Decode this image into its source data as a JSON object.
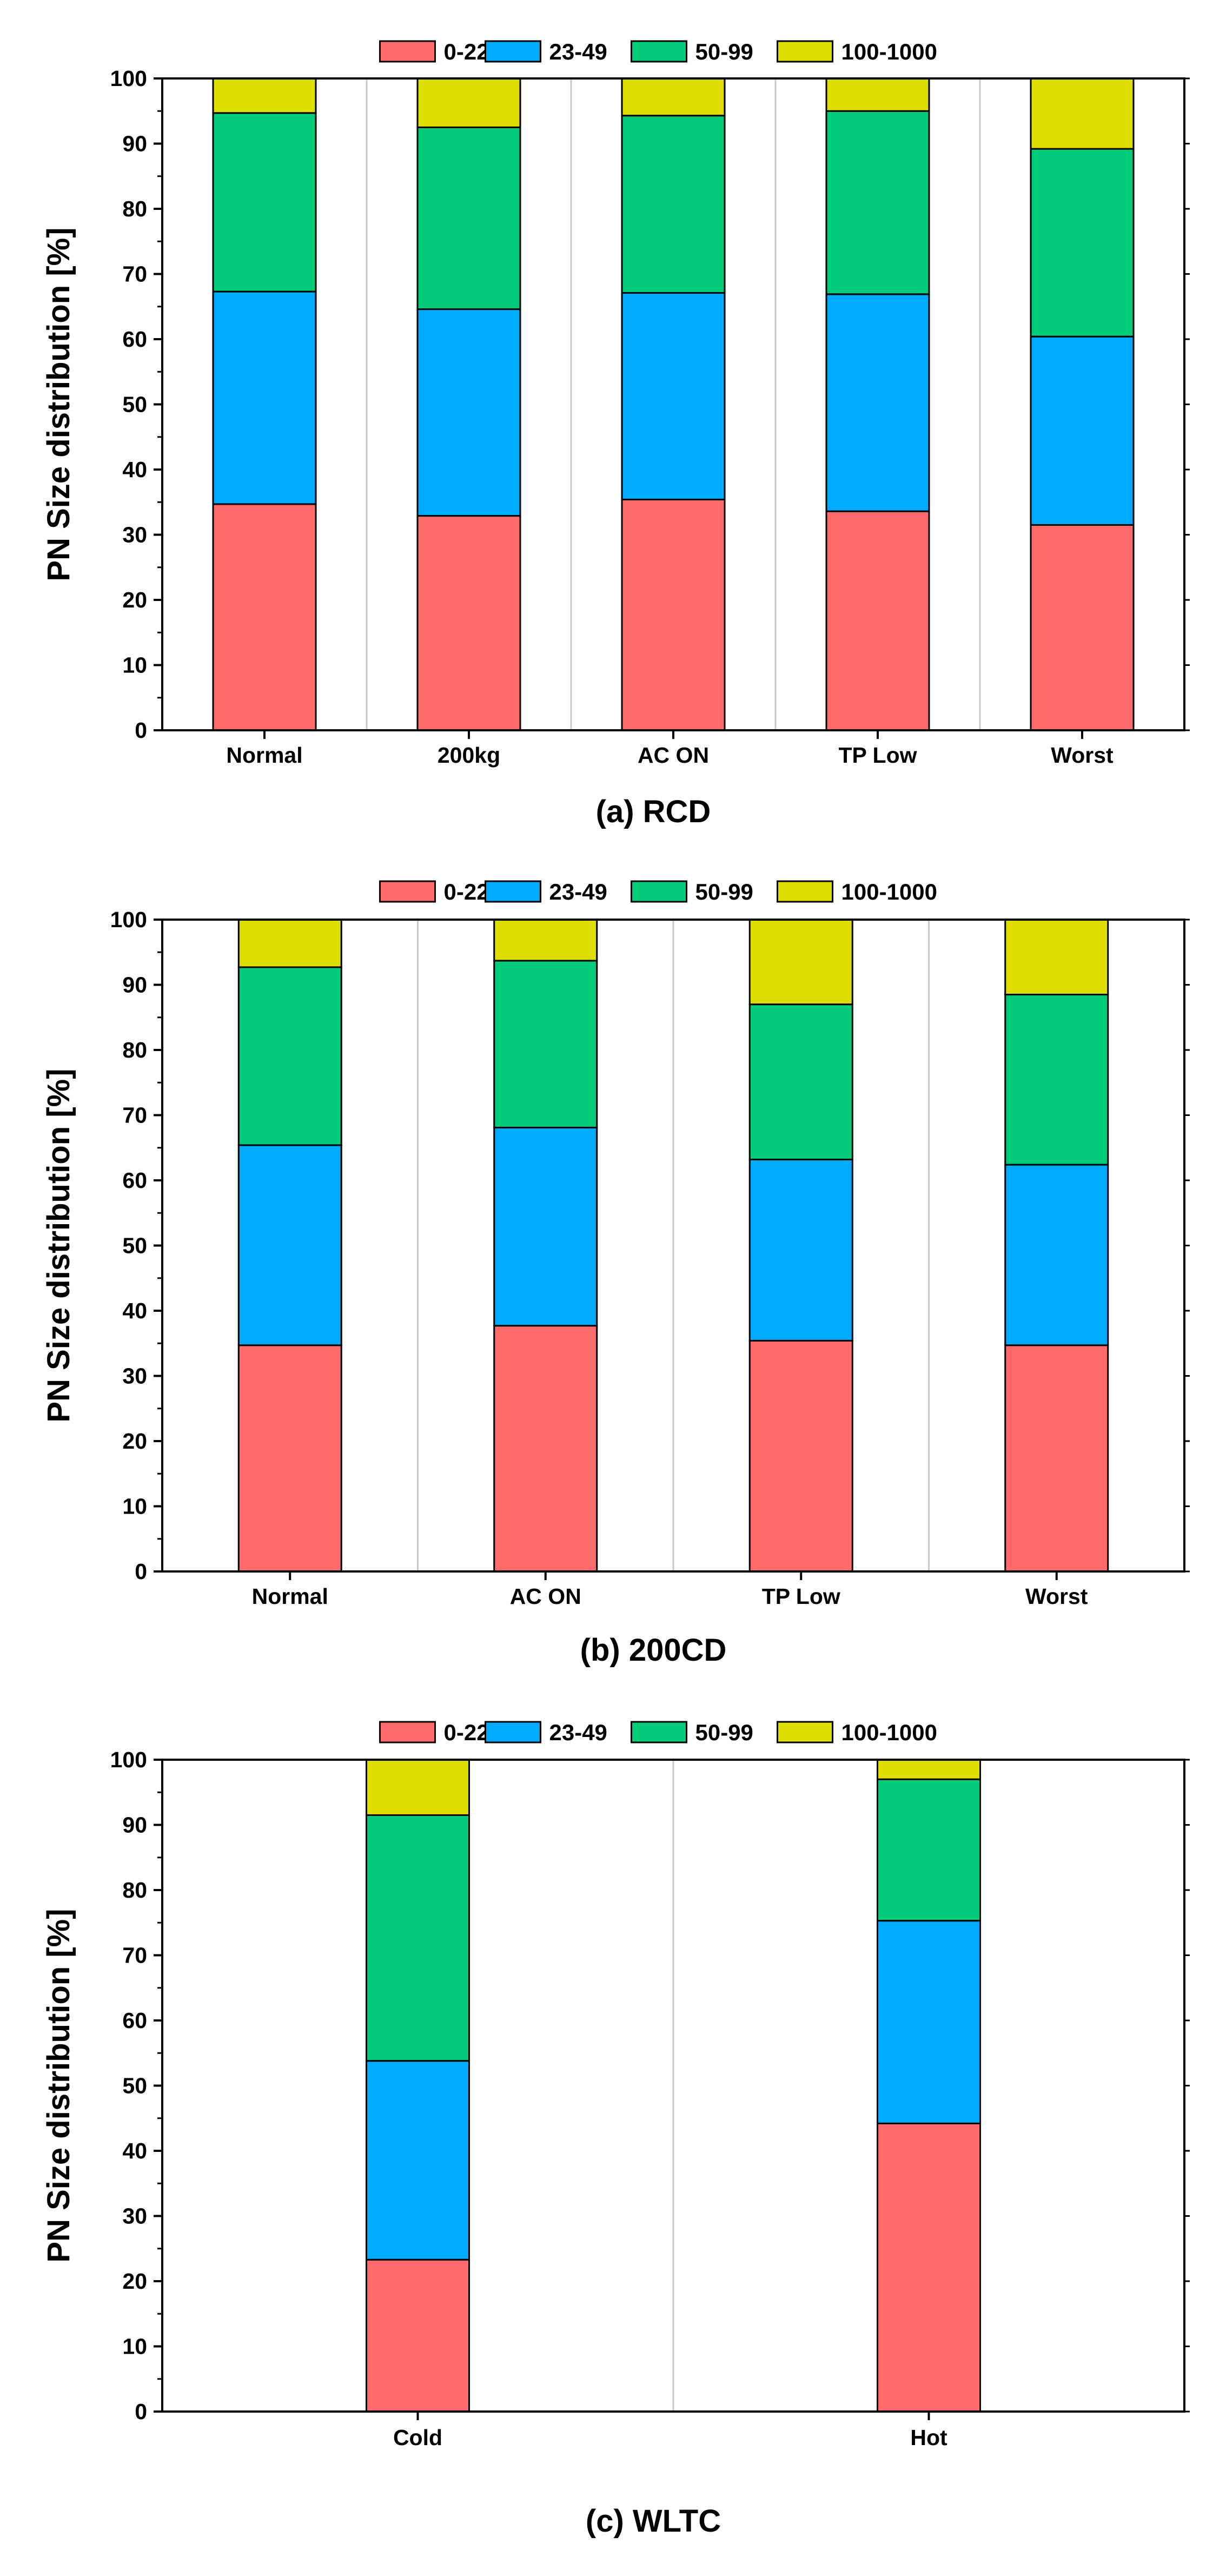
{
  "series_colors": [
    "#ff6b6b",
    "#00aaff",
    "#00cc7a",
    "#dddd00"
  ],
  "chart_data": [
    {
      "type": "bar",
      "stacked": true,
      "caption": "(a) RCD",
      "ylabel": "PN Size distribution [%]",
      "ylim": [
        0,
        100
      ],
      "yticks": [
        "0",
        "10",
        "20",
        "30",
        "40",
        "50",
        "60",
        "70",
        "80",
        "90",
        "100"
      ],
      "grid": true,
      "legend_position": "top-center",
      "categories": [
        "Normal",
        "200kg",
        "AC ON",
        "TP Low",
        "Worst"
      ],
      "series": [
        {
          "name": "0-22",
          "values": [
            34.7,
            32.9,
            35.4,
            33.6,
            31.5
          ]
        },
        {
          "name": "23-49",
          "values": [
            32.6,
            31.7,
            31.7,
            33.3,
            28.9
          ]
        },
        {
          "name": "50-99",
          "values": [
            27.4,
            27.9,
            27.2,
            28.1,
            28.8
          ]
        },
        {
          "name": "100-1000",
          "values": [
            5.3,
            7.5,
            5.7,
            5.0,
            10.8
          ]
        }
      ]
    },
    {
      "type": "bar",
      "stacked": true,
      "caption": "(b) 200CD",
      "ylabel": "PN Size distribution [%]",
      "ylim": [
        0,
        100
      ],
      "yticks": [
        "0",
        "10",
        "20",
        "30",
        "40",
        "50",
        "60",
        "70",
        "80",
        "90",
        "100"
      ],
      "grid": true,
      "legend_position": "top-center",
      "categories": [
        "Normal",
        "AC ON",
        "TP Low",
        "Worst"
      ],
      "series": [
        {
          "name": "0-22",
          "values": [
            34.7,
            37.7,
            35.4,
            34.7
          ]
        },
        {
          "name": "23-49",
          "values": [
            30.7,
            30.4,
            27.8,
            27.7
          ]
        },
        {
          "name": "50-99",
          "values": [
            27.3,
            25.6,
            23.8,
            26.1
          ]
        },
        {
          "name": "100-1000",
          "values": [
            7.3,
            6.3,
            13.0,
            11.5
          ]
        }
      ]
    },
    {
      "type": "bar",
      "stacked": true,
      "caption": "(c) WLTC",
      "ylabel": "PN Size distribution [%]",
      "ylim": [
        0,
        100
      ],
      "yticks": [
        "0",
        "10",
        "20",
        "30",
        "40",
        "50",
        "60",
        "70",
        "80",
        "90",
        "100"
      ],
      "grid": true,
      "legend_position": "top-center",
      "categories": [
        "Cold",
        "Hot"
      ],
      "series": [
        {
          "name": "0-22",
          "values": [
            23.3,
            44.2
          ]
        },
        {
          "name": "23-49",
          "values": [
            30.5,
            31.1
          ]
        },
        {
          "name": "50-99",
          "values": [
            37.7,
            21.7
          ]
        },
        {
          "name": "100-1000",
          "values": [
            8.5,
            3.0
          ]
        }
      ]
    }
  ]
}
